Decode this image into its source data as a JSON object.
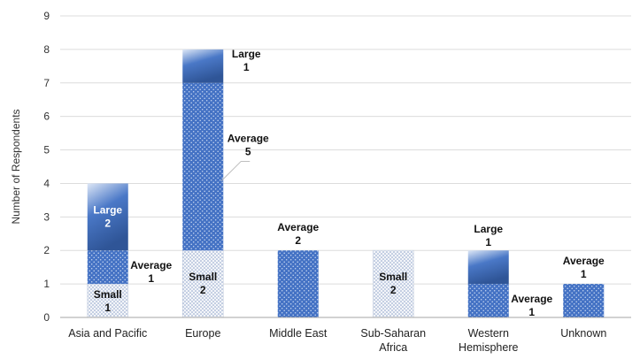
{
  "chart_data": {
    "type": "bar",
    "stacked": true,
    "ylabel": "Number of Respondents",
    "xlabel": "",
    "title": "",
    "ylim": [
      0,
      9
    ],
    "yticks": [
      0,
      1,
      2,
      3,
      4,
      5,
      6,
      7,
      8,
      9
    ],
    "grid": "horizontal",
    "legend": "none",
    "categories": [
      [
        "Asia and Pacific"
      ],
      [
        "Europe"
      ],
      [
        "Middle East"
      ],
      [
        "Sub-Saharan",
        "Africa"
      ],
      [
        "Western",
        "Hemisphere"
      ],
      [
        "Unknown"
      ]
    ],
    "series": [
      {
        "name": "Small",
        "values": [
          1,
          2,
          0,
          2,
          0,
          0
        ],
        "color": "#f3f5f9",
        "dot": "#8da2c8"
      },
      {
        "name": "Average",
        "values": [
          1,
          5,
          2,
          0,
          1,
          1
        ],
        "color": "#4472c4",
        "dot": "#d6e2f5"
      },
      {
        "name": "Large",
        "values": [
          2,
          1,
          0,
          0,
          1,
          0
        ],
        "color": "#2f5597",
        "color_light": "#d6e2f5"
      }
    ]
  }
}
